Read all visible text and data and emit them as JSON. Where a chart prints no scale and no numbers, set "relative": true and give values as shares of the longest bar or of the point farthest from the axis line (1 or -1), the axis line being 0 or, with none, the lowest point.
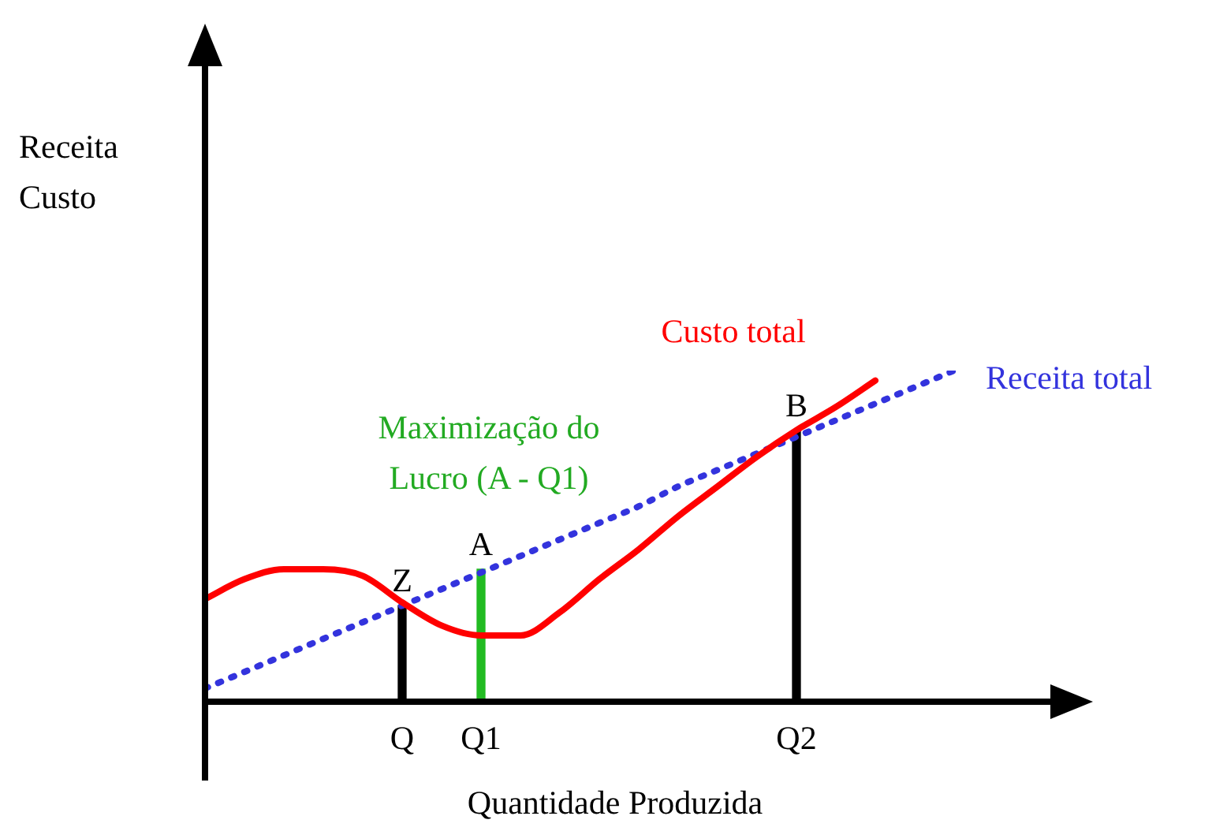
{
  "chart_data": {
    "type": "line",
    "relative": true,
    "xlabel": "Quantidade Produzida",
    "categories": [
      null,
      null,
      null,
      null,
      null,
      "Q",
      null,
      "Q1",
      null,
      null,
      null,
      null,
      null,
      null,
      null,
      "Q2",
      null,
      null,
      null,
      null
    ],
    "series": [
      {
        "name": "Custo total",
        "color": "#ff0000",
        "values": [
          0.31,
          0.37,
          0.4,
          0.4,
          0.38,
          0.3,
          0.23,
          0.2,
          0.2,
          0.27,
          0.37,
          0.46,
          0.56,
          0.65,
          0.74,
          0.82,
          0.89,
          0.97,
          null,
          null
        ]
      },
      {
        "name": "Receita total",
        "color": "#3333dd",
        "line_style": "dotted",
        "values": [
          0.04,
          0.09,
          0.14,
          0.19,
          0.24,
          0.29,
          0.34,
          0.39,
          0.44,
          0.49,
          0.54,
          0.59,
          0.65,
          0.7,
          0.75,
          0.8,
          0.85,
          0.9,
          0.95,
          1.0
        ]
      },
      {
        "type": "bar",
        "color": "#000000",
        "values": [
          null,
          null,
          null,
          null,
          null,
          0.29,
          null,
          null,
          null,
          null,
          null,
          null,
          null,
          null,
          null,
          0.82,
          null,
          null,
          null,
          null
        ]
      },
      {
        "type": "bar",
        "color": "#22bb22",
        "values": [
          null,
          null,
          null,
          null,
          null,
          null,
          null,
          0.4,
          null,
          null,
          null,
          null,
          null,
          null,
          null,
          null,
          null,
          null,
          null,
          null
        ]
      }
    ],
    "annotations": [
      {
        "text": "Z",
        "x": "Q",
        "y": 0.29
      },
      {
        "text": "A",
        "x": "Q1",
        "y": 0.4
      },
      {
        "text": "B",
        "x": "Q2",
        "y": 0.82
      },
      "Receita Custo",
      "Maximização do Lucro (A - Q1)"
    ],
    "legend": false,
    "marker": "none"
  }
}
